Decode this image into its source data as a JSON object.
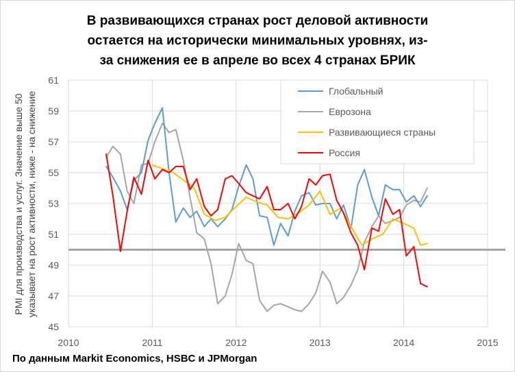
{
  "chart_data": {
    "type": "line",
    "title_lines": [
      "В развивающихся странах рост деловой активности",
      "остается на исторически минимальных уровнях, из-",
      "за снижения ее в апреле во всех 4 странах БРИК"
    ],
    "ylabel_lines": [
      "PMI для производства и услуг. Значение выше 50",
      "указывает на рост активности, ниже - на снижение"
    ],
    "source": "По данным Markit Economics, HSBC и JPMorgan",
    "ylim": [
      45,
      61
    ],
    "yticks": [
      "45",
      "47",
      "49",
      "51",
      "53",
      "55",
      "57",
      "59",
      "61"
    ],
    "xlim": [
      2010,
      2015
    ],
    "xticks": [
      "2010",
      "2011",
      "2012",
      "2013",
      "2014",
      "2015"
    ],
    "reference_line": 50,
    "grid": true,
    "legend_position": "top-right",
    "series": [
      {
        "name": "Глобальный",
        "color": "#5b9bd5",
        "x": [
          2010.45,
          2010.53,
          2010.62,
          2010.7,
          2010.78,
          2010.87,
          2010.95,
          2011.03,
          2011.12,
          2011.2,
          2011.28,
          2011.37,
          2011.45,
          2011.53,
          2011.62,
          2011.7,
          2011.78,
          2011.87,
          2011.95,
          2012.03,
          2012.12,
          2012.2,
          2012.28,
          2012.37,
          2012.45,
          2012.53,
          2012.62,
          2012.7,
          2012.78,
          2012.87,
          2012.95,
          2013.03,
          2013.12,
          2013.2,
          2013.28,
          2013.37,
          2013.45,
          2013.53,
          2013.62,
          2013.7,
          2013.78,
          2013.87,
          2013.95,
          2014.03,
          2014.12,
          2014.2,
          2014.28
        ],
        "y": [
          55.4,
          54.7,
          53.8,
          52.6,
          54.5,
          55.0,
          57.1,
          58.2,
          59.2,
          55.0,
          51.8,
          52.7,
          52.1,
          52.5,
          51.5,
          52.0,
          51.5,
          52.0,
          52.6,
          54.1,
          55.5,
          54.6,
          52.2,
          52.1,
          50.3,
          51.7,
          50.9,
          52.5,
          53.5,
          53.7,
          52.9,
          53.0,
          53.0,
          52.0,
          52.9,
          51.4,
          54.2,
          55.2,
          53.4,
          52.2,
          54.2,
          53.9,
          53.9,
          53.1,
          53.5,
          52.8,
          53.5
        ]
      },
      {
        "name": "Еврозона",
        "color": "#a5a5a5",
        "x": [
          2010.45,
          2010.53,
          2010.62,
          2010.7,
          2010.78,
          2010.87,
          2010.95,
          2011.03,
          2011.12,
          2011.2,
          2011.28,
          2011.37,
          2011.45,
          2011.53,
          2011.62,
          2011.7,
          2011.78,
          2011.87,
          2011.95,
          2012.03,
          2012.12,
          2012.2,
          2012.28,
          2012.37,
          2012.45,
          2012.53,
          2012.62,
          2012.7,
          2012.78,
          2012.87,
          2012.95,
          2013.03,
          2013.12,
          2013.2,
          2013.28,
          2013.37,
          2013.45,
          2013.53,
          2013.62,
          2013.7,
          2013.78,
          2013.87,
          2013.95,
          2014.03,
          2014.12,
          2014.2,
          2014.28
        ],
        "y": [
          56.0,
          56.7,
          56.2,
          53.8,
          53.0,
          55.5,
          55.6,
          57.0,
          58.2,
          57.6,
          57.8,
          55.8,
          53.4,
          51.1,
          50.7,
          49.1,
          46.5,
          47.0,
          48.4,
          50.4,
          49.3,
          49.1,
          46.7,
          46.0,
          46.4,
          46.5,
          46.3,
          46.1,
          46.0,
          46.5,
          47.2,
          48.6,
          47.9,
          46.5,
          46.9,
          47.7,
          48.7,
          50.5,
          51.5,
          52.2,
          51.7,
          51.9,
          52.1,
          52.9,
          53.2,
          53.1,
          54.0
        ]
      },
      {
        "name": "Развивающиеся страны",
        "color": "#ffc000",
        "x": [
          2011.0,
          2011.25,
          2011.5,
          2011.62,
          2011.75,
          2011.87,
          2012.0,
          2012.12,
          2012.25,
          2012.37,
          2012.5,
          2012.62,
          2012.75,
          2012.87,
          2013.0,
          2013.12,
          2013.25,
          2013.37,
          2013.5,
          2013.62,
          2013.75,
          2013.87,
          2014.0,
          2014.12,
          2014.2,
          2014.28
        ],
        "y": [
          55.5,
          55.0,
          54.0,
          52.3,
          51.9,
          52.1,
          52.8,
          53.4,
          53.1,
          52.9,
          52.1,
          52.0,
          52.4,
          52.9,
          53.8,
          52.3,
          52.7,
          51.5,
          50.3,
          50.7,
          51.0,
          52.0,
          51.7,
          51.4,
          50.3,
          50.4
        ]
      },
      {
        "name": "Россия",
        "color": "#ff0000",
        "x": [
          2010.45,
          2010.53,
          2010.62,
          2010.7,
          2010.78,
          2010.87,
          2010.95,
          2011.03,
          2011.12,
          2011.2,
          2011.28,
          2011.37,
          2011.45,
          2011.53,
          2011.62,
          2011.7,
          2011.78,
          2011.87,
          2011.95,
          2012.03,
          2012.12,
          2012.2,
          2012.28,
          2012.37,
          2012.45,
          2012.53,
          2012.62,
          2012.7,
          2012.78,
          2012.87,
          2012.95,
          2013.03,
          2013.12,
          2013.2,
          2013.28,
          2013.37,
          2013.45,
          2013.53,
          2013.62,
          2013.7,
          2013.78,
          2013.87,
          2013.95,
          2014.03,
          2014.12,
          2014.2,
          2014.28
        ],
        "y": [
          56.2,
          53.5,
          49.9,
          52.5,
          54.7,
          53.6,
          55.8,
          54.6,
          55.2,
          55.0,
          55.4,
          55.4,
          53.9,
          54.6,
          52.8,
          52.2,
          52.6,
          54.6,
          54.8,
          54.3,
          53.7,
          53.5,
          53.3,
          54.1,
          52.6,
          52.6,
          53.0,
          52.0,
          52.8,
          54.6,
          54.2,
          54.8,
          54.9,
          53.2,
          52.4,
          51.1,
          50.3,
          48.7,
          51.4,
          51.2,
          53.3,
          52.3,
          52.6,
          49.6,
          50.2,
          47.8,
          47.6
        ]
      }
    ]
  }
}
